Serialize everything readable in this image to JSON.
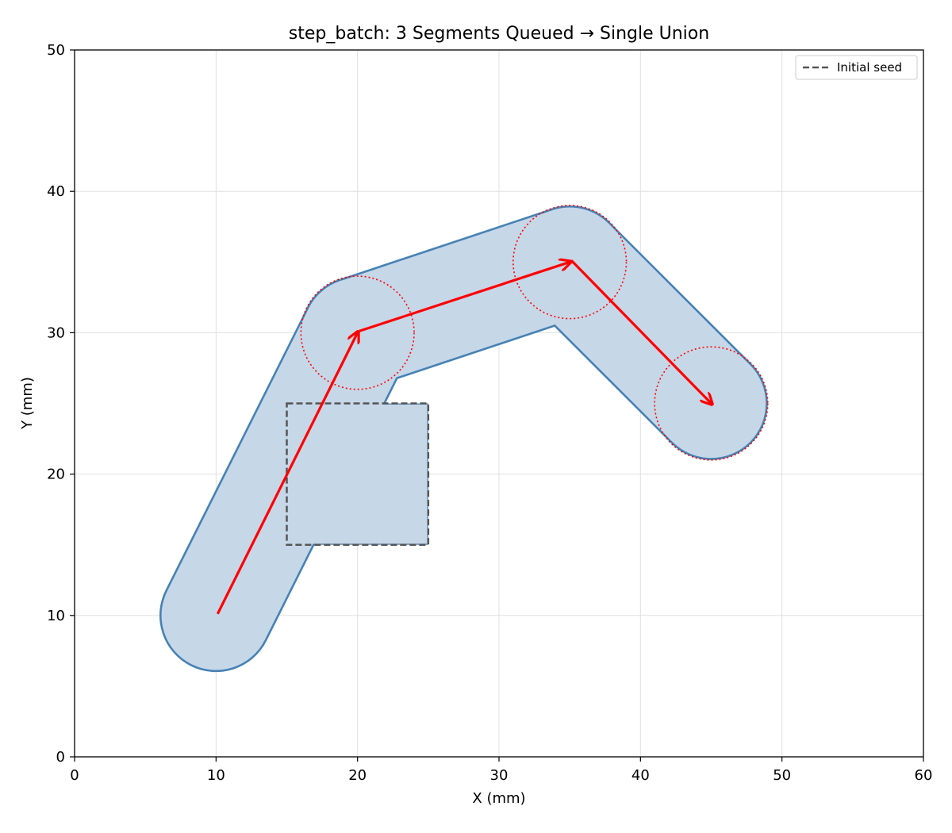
{
  "chart_data": {
    "type": "line",
    "title": "step_batch: 3 Segments Queued → Single Union",
    "xlabel": "X (mm)",
    "ylabel": "Y (mm)",
    "xlim": [
      0,
      60
    ],
    "ylim": [
      0,
      50
    ],
    "xticks": [
      0,
      10,
      20,
      30,
      40,
      50,
      60
    ],
    "yticks": [
      0,
      10,
      20,
      30,
      40,
      50
    ],
    "grid": true,
    "legend": {
      "placement": "top-right",
      "entries": [
        "Initial seed"
      ]
    },
    "initial_seed": {
      "x_range": [
        15,
        25
      ],
      "y_range": [
        15,
        25
      ]
    },
    "brush_radius": 4,
    "waypoints": [
      {
        "x": 10,
        "y": 10
      },
      {
        "x": 20,
        "y": 30
      },
      {
        "x": 35,
        "y": 35
      },
      {
        "x": 45,
        "y": 25
      }
    ],
    "colors": {
      "union_fill": "#c6d7e8",
      "union_edge": "#4682b4",
      "arrow": "#ff0000",
      "seed": "#555555",
      "grid": "#e0e0e0"
    }
  }
}
